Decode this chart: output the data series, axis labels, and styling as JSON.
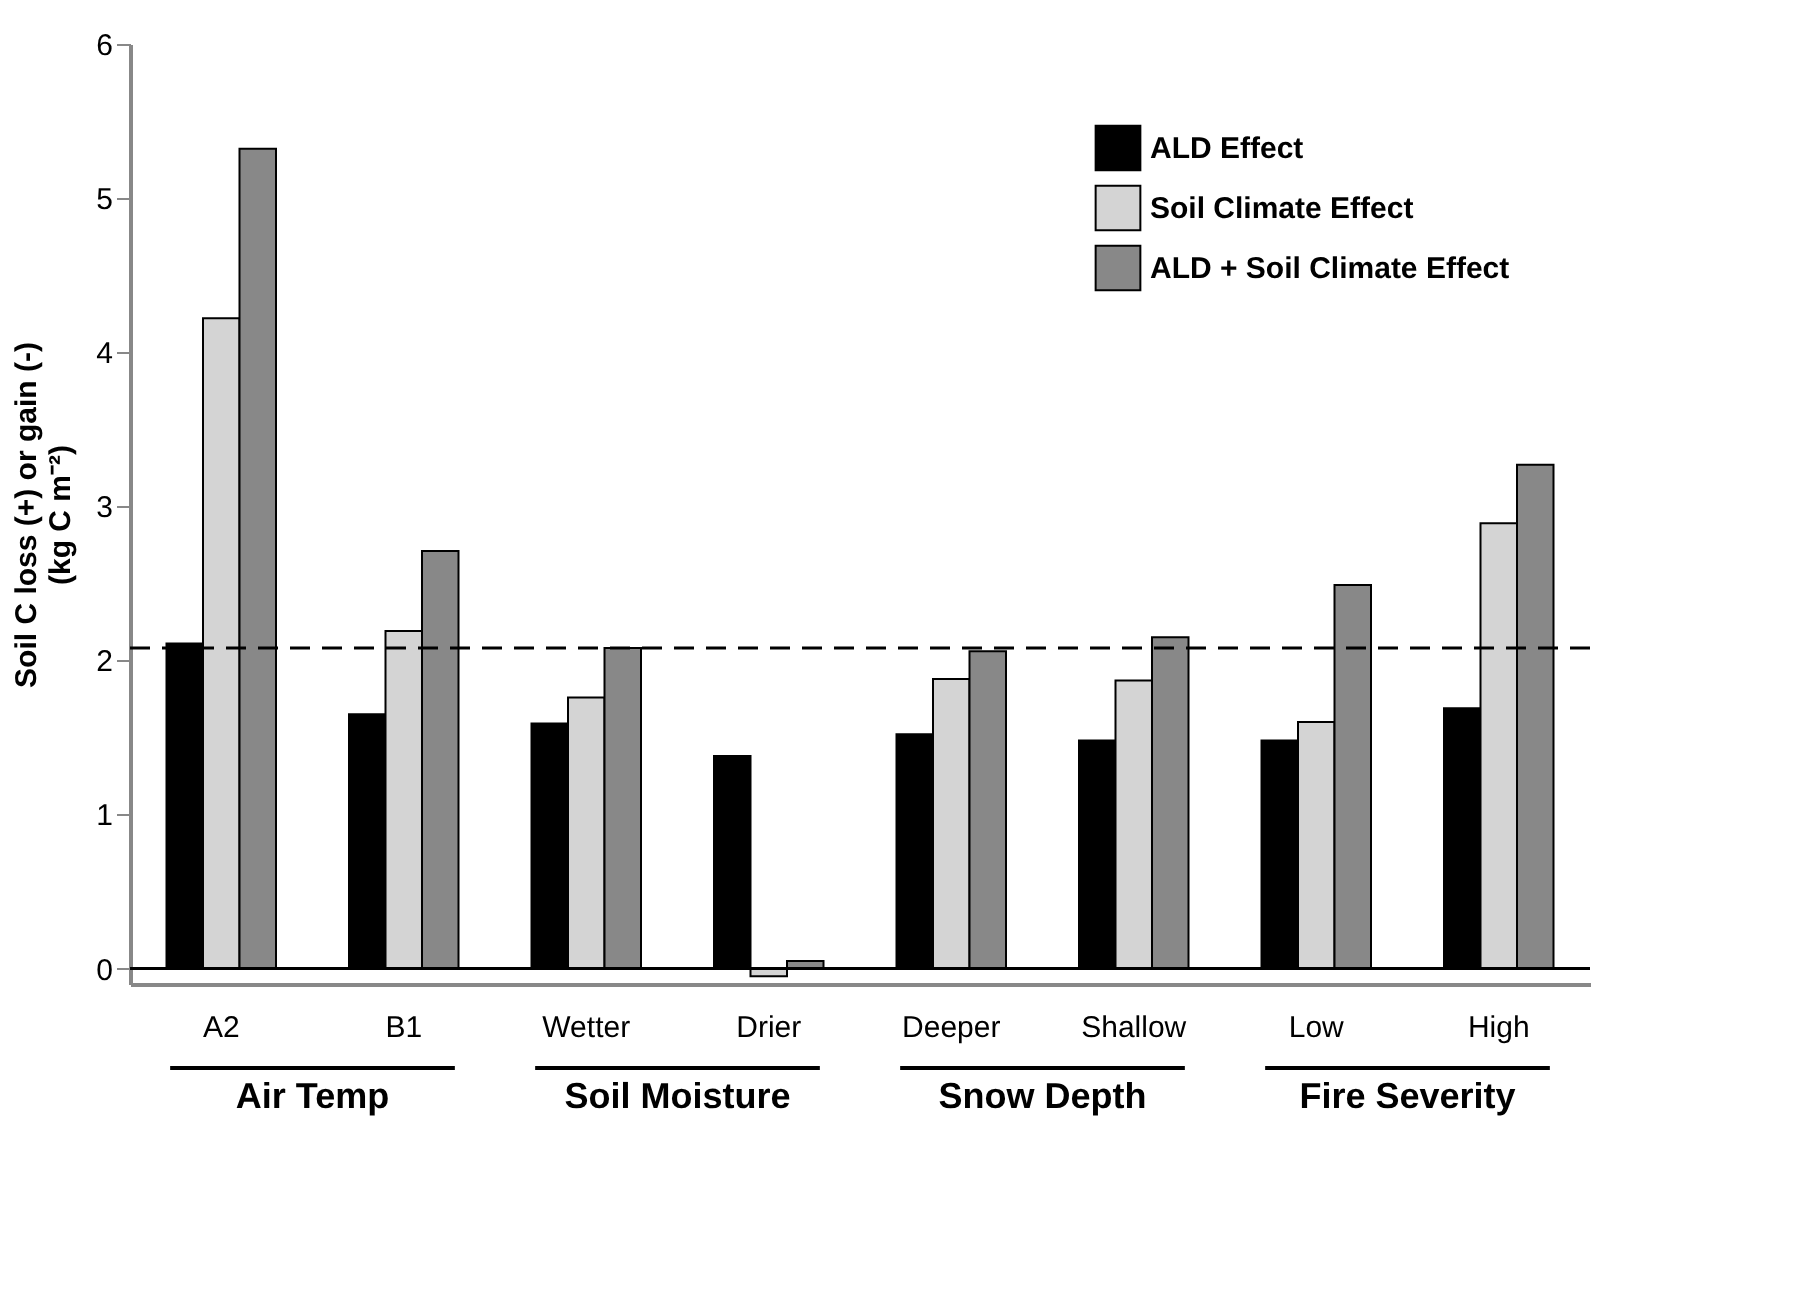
{
  "chart_data": {
    "type": "bar",
    "ylabel": "Soil C loss (+) or gain (-)\n(kg C m⁻²)",
    "categories": [
      "A2",
      "B1",
      "Wetter",
      "Drier",
      "Deeper",
      "Shallow",
      "Low",
      "High"
    ],
    "series": [
      {
        "name": "ALD Effect",
        "color": "#000000",
        "values": [
          2.11,
          1.65,
          1.59,
          1.38,
          1.52,
          1.48,
          1.48,
          1.69
        ]
      },
      {
        "name": "Soil Climate Effect",
        "color": "#d4d4d4",
        "values": [
          4.22,
          2.19,
          1.76,
          -0.05,
          1.88,
          1.87,
          1.6,
          2.89
        ]
      },
      {
        "name": "ALD + Soil Climate Effect",
        "color": "#888888",
        "values": [
          5.32,
          2.71,
          2.08,
          0.05,
          2.06,
          2.15,
          2.49,
          3.27
        ]
      }
    ],
    "ylim": [
      -0.1,
      6
    ],
    "yticks": [
      0,
      1,
      2,
      3,
      4,
      5,
      6
    ],
    "ref_lines": [
      {
        "axis": "y",
        "value": 2.08,
        "line_style": "dashed",
        "color": "#000000"
      },
      {
        "axis": "y",
        "value": 0,
        "line_style": "solid",
        "color": "#000000"
      }
    ],
    "annotations": [
      "Air Temp",
      "Soil Moisture",
      "Snow Depth",
      "Fire Severity"
    ],
    "legend": "top right",
    "grid": false
  }
}
